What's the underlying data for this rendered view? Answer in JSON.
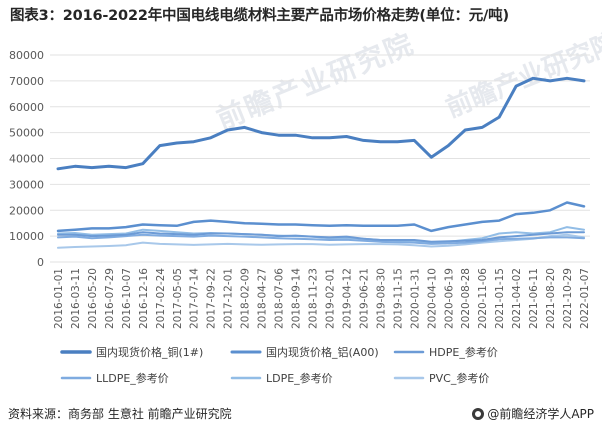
{
  "title": "图表3：2016-2022年中国电线电缆材料主要产品市场价格走势(单位：元/吨)",
  "footer": {
    "source": "资料来源：商务部 生意社 前瞻产业研究院",
    "brand": "@前瞻经济学人APP"
  },
  "watermark": "前瞻产业研究院",
  "chart_data": {
    "type": "line",
    "title": "图表3：2016-2022年中国电线电缆材料主要产品市场价格走势(单位：元/吨)",
    "xlabel": "",
    "ylabel": "",
    "ylim": [
      0,
      80000
    ],
    "yticks": [
      "0",
      "10000",
      "20000",
      "30000",
      "40000",
      "50000",
      "60000",
      "70000",
      "80000"
    ],
    "grid": true,
    "legend_position": "bottom",
    "x_tick_labels": [
      "2016-01-01",
      "2016-03-11",
      "2016-05-20",
      "2016-07-29",
      "2016-10-07",
      "2016-12-16",
      "2017-02-24",
      "2017-05-05",
      "2017-07-14",
      "2017-09-22",
      "2017-12-01",
      "2018-02-09",
      "2018-04-27",
      "2018-07-06",
      "2018-09-14",
      "2018-11-23",
      "2019-02-01",
      "2019-04-12",
      "2019-06-21",
      "2019-08-30",
      "2019-11-15",
      "2020-01-31",
      "2020-04-10",
      "2020-06-19",
      "2020-08-28",
      "2020-11-06",
      "2021-01-15",
      "2021-04-02",
      "2021-06-11",
      "2021-08-20",
      "2021-10-29",
      "2022-01-07"
    ],
    "series": [
      {
        "name": "国内现货价格_铜(1#)",
        "color": "#4a7fc1",
        "width": 3,
        "values": [
          36000,
          37000,
          36500,
          37000,
          36500,
          38000,
          45000,
          46000,
          46500,
          48000,
          51000,
          52000,
          50000,
          49000,
          49000,
          48000,
          48000,
          48500,
          47000,
          46500,
          46500,
          47000,
          40500,
          45000,
          51000,
          52000,
          56000,
          68000,
          71000,
          70000,
          71000,
          70000
        ]
      },
      {
        "name": "国内现货价格_铝(A00)",
        "color": "#5b8fcf",
        "width": 2.5,
        "values": [
          12000,
          12500,
          13000,
          13000,
          13500,
          14500,
          14200,
          14000,
          15500,
          16000,
          15500,
          15000,
          14800,
          14500,
          14500,
          14200,
          14000,
          14200,
          14000,
          14000,
          14000,
          14500,
          12000,
          13500,
          14500,
          15500,
          16000,
          18500,
          19000,
          20000,
          23000,
          21500
        ]
      },
      {
        "name": "HDPE_参考价",
        "color": "#6c9bd6",
        "width": 2,
        "values": [
          10500,
          10500,
          10000,
          10200,
          10500,
          11500,
          11000,
          10800,
          10500,
          11000,
          11000,
          10800,
          10500,
          10000,
          10200,
          9800,
          9500,
          9800,
          9000,
          8500,
          8500,
          8500,
          7800,
          8000,
          8200,
          8500,
          9500,
          10000,
          10500,
          11000,
          11500,
          11500
        ]
      },
      {
        "name": "LLDPE_参考价",
        "color": "#7fabe0",
        "width": 2,
        "values": [
          9500,
          9800,
          9200,
          9500,
          10000,
          10500,
          10200,
          10000,
          9800,
          10200,
          10000,
          9800,
          9500,
          9200,
          9000,
          8800,
          8500,
          8600,
          8200,
          7800,
          7600,
          7500,
          7000,
          7200,
          7500,
          8000,
          8800,
          9000,
          9200,
          9500,
          9500,
          9200
        ]
      },
      {
        "name": "LDPE_参考价",
        "color": "#92bde6",
        "width": 2,
        "values": [
          11000,
          11200,
          10500,
          10800,
          11000,
          12500,
          12000,
          11500,
          11000,
          11200,
          11000,
          10800,
          10500,
          10200,
          10000,
          9800,
          9200,
          9300,
          9000,
          8500,
          8300,
          8200,
          7500,
          7800,
          8500,
          9200,
          11000,
          11500,
          11000,
          11500,
          13500,
          12500
        ]
      },
      {
        "name": "PVC_参考价",
        "color": "#a8c8ea",
        "width": 2,
        "values": [
          5500,
          5800,
          6000,
          6200,
          6500,
          7500,
          7000,
          6800,
          6600,
          6800,
          7000,
          6800,
          6700,
          6800,
          6900,
          6900,
          6700,
          6800,
          6900,
          6900,
          6800,
          6500,
          6000,
          6300,
          6800,
          7500,
          8000,
          8500,
          9000,
          10000,
          10500,
          9500
        ]
      }
    ]
  }
}
